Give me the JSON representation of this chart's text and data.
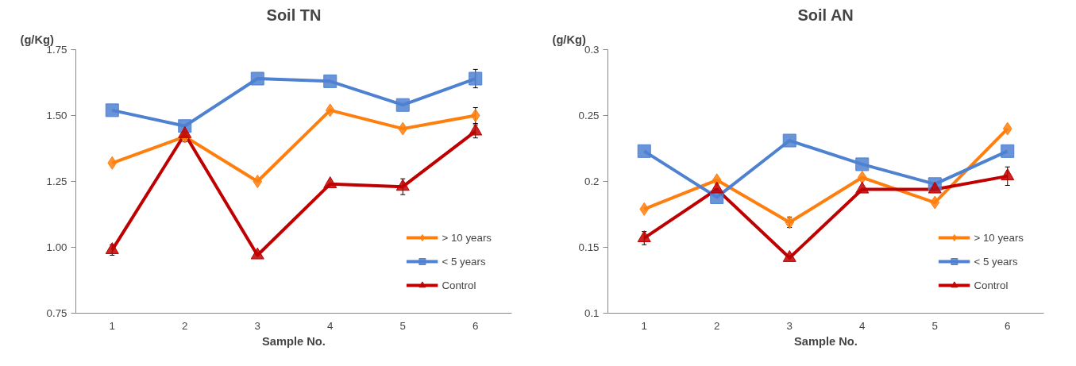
{
  "chart_data": [
    {
      "type": "line",
      "title": "Soil TN",
      "ylabel": "(g/Kg)",
      "xlabel": "Sample No.",
      "categories": [
        "1",
        "2",
        "3",
        "4",
        "5",
        "6"
      ],
      "grid": false,
      "legend": "bottom right",
      "ylim": [
        0.75,
        1.75
      ],
      "yticks": [
        0.75,
        {
          "value": 1.0,
          "label": "1.00"
        },
        1.25,
        {
          "value": 1.5,
          "label": "1.50"
        },
        1.75
      ],
      "series": [
        {
          "name": "> 10 years",
          "color": "#ff7f0e",
          "marker": "diamond",
          "values": [
            1.32,
            1.42,
            1.25,
            1.52,
            1.45,
            1.5
          ],
          "errors": [
            null,
            null,
            null,
            null,
            null,
            0.03
          ]
        },
        {
          "name": "< 5 years",
          "color": "#4f81d1",
          "marker": "square",
          "values": [
            1.52,
            1.46,
            1.64,
            1.63,
            1.54,
            1.64
          ],
          "errors": [
            null,
            null,
            null,
            null,
            null,
            0.035
          ]
        },
        {
          "name": "Control",
          "color": "#c00000",
          "marker": "triangle",
          "values": [
            0.99,
            1.43,
            0.97,
            1.24,
            1.23,
            1.44
          ],
          "errors": [
            0.02,
            0.03,
            null,
            null,
            0.03,
            0.025
          ]
        }
      ]
    },
    {
      "type": "line",
      "title": "Soil AN",
      "ylabel": "(g/Kg)",
      "xlabel": "Sample No.",
      "categories": [
        "1",
        "2",
        "3",
        "4",
        "5",
        "6"
      ],
      "grid": false,
      "legend": "bottom right",
      "ylim": [
        0.1,
        0.3
      ],
      "yticks": [
        0.1,
        0.15,
        0.2,
        0.25,
        0.3
      ],
      "series": [
        {
          "name": "> 10 years",
          "color": "#ff7f0e",
          "marker": "diamond",
          "values": [
            0.179,
            0.201,
            0.169,
            0.203,
            0.184,
            0.24
          ],
          "errors": [
            null,
            null,
            0.004,
            null,
            null,
            null
          ]
        },
        {
          "name": "< 5 years",
          "color": "#4f81d1",
          "marker": "square",
          "values": [
            0.223,
            0.188,
            0.231,
            0.213,
            0.198,
            0.223
          ],
          "errors": [
            null,
            null,
            null,
            null,
            null,
            null
          ]
        },
        {
          "name": "Control",
          "color": "#c00000",
          "marker": "triangle",
          "values": [
            0.157,
            0.194,
            0.142,
            0.194,
            0.194,
            0.204
          ],
          "errors": [
            0.005,
            null,
            null,
            null,
            null,
            0.007
          ]
        }
      ]
    }
  ]
}
